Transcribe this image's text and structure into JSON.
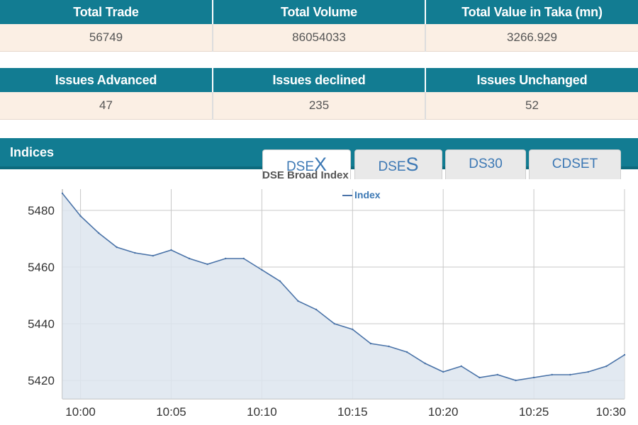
{
  "trade_summary": {
    "headers": [
      "Total Trade",
      "Total Volume",
      "Total Value in Taka (mn)"
    ],
    "values": [
      "56749",
      "86054033",
      "3266.929"
    ]
  },
  "issues_summary": {
    "headers": [
      "Issues Advanced",
      "Issues declined",
      "Issues Unchanged"
    ],
    "values": [
      "47",
      "235",
      "52"
    ]
  },
  "indices": {
    "title": "Indices",
    "tabs": [
      {
        "prefix": "DSE",
        "suffix": "X",
        "active": true
      },
      {
        "prefix": "DSE",
        "suffix": "S",
        "active": false
      },
      {
        "label": "DS30",
        "active": false
      },
      {
        "label": "CDSET",
        "active": false
      }
    ]
  },
  "colors": {
    "header_bg": "#127c92",
    "row_bg": "#fbefe4",
    "series_line": "#4a73a8",
    "series_fill": "#dde5ef",
    "tab_text": "#3c78b4"
  },
  "chart_data": {
    "type": "area",
    "title": "DSE Broad Index",
    "legend": {
      "position": "top-center",
      "entries": [
        "Index"
      ]
    },
    "xlabel": "",
    "ylabel": "",
    "x_ticks": [
      "10:00",
      "10:05",
      "10:10",
      "10:15",
      "10:20",
      "10:25",
      "10:30"
    ],
    "y_ticks": [
      5420,
      5440,
      5460,
      5480
    ],
    "xlim": [
      "09:59",
      "10:30"
    ],
    "ylim": [
      5413.5,
      5490
    ],
    "grid": true,
    "series": [
      {
        "name": "Index",
        "x": [
          "09:59",
          "10:00",
          "10:01",
          "10:02",
          "10:03",
          "10:04",
          "10:05",
          "10:06",
          "10:07",
          "10:08",
          "10:09",
          "10:10",
          "10:11",
          "10:12",
          "10:13",
          "10:14",
          "10:15",
          "10:16",
          "10:17",
          "10:18",
          "10:19",
          "10:20",
          "10:21",
          "10:22",
          "10:23",
          "10:24",
          "10:25",
          "10:26",
          "10:27",
          "10:28",
          "10:29",
          "10:30"
        ],
        "values": [
          5486,
          5478,
          5472,
          5467,
          5465,
          5464,
          5466,
          5463,
          5461,
          5463,
          5463,
          5459,
          5455,
          5448,
          5445,
          5440,
          5438,
          5433,
          5432,
          5430,
          5426,
          5423,
          5425,
          5421,
          5422,
          5420,
          5421,
          5422,
          5422,
          5423,
          5425,
          5429
        ]
      }
    ]
  }
}
